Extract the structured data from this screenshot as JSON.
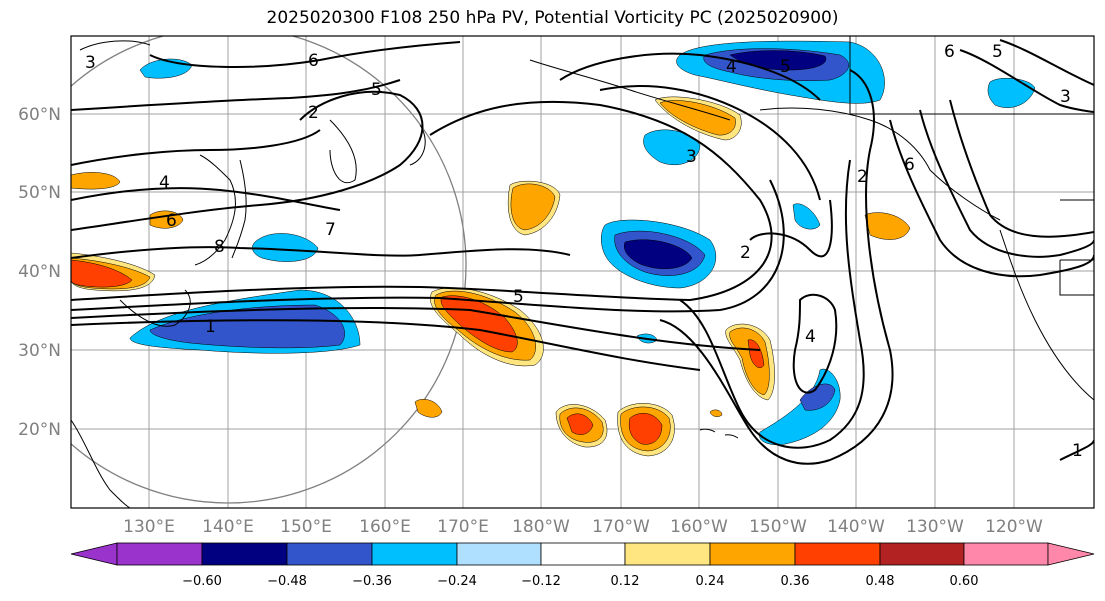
{
  "title": "2025020300 F108 250 hPa PV, Potential Vorticity PC (2025020900)",
  "map": {
    "lat_labels": [
      "60°N",
      "50°N",
      "40°N",
      "30°N",
      "20°N"
    ],
    "lon_labels": [
      "130°E",
      "140°E",
      "150°E",
      "160°E",
      "170°E",
      "180°W",
      "170°W",
      "160°W",
      "150°W",
      "140°W",
      "130°W",
      "120°W"
    ],
    "contour_labels": [
      "6",
      "5",
      "2",
      "4",
      "6",
      "7",
      "8",
      "1",
      "5",
      "4",
      "5",
      "3",
      "2",
      "2",
      "4",
      "1",
      "6",
      "5",
      "3",
      "3",
      "6"
    ],
    "colors": {
      "grid": "#a0a0a0",
      "coast": "#000000",
      "contour": "#000000",
      "label_gray": "#808080"
    }
  },
  "colorbar": {
    "tick_labels": [
      "−0.60",
      "−0.48",
      "−0.36",
      "−0.24",
      "−0.12",
      "0.12",
      "0.24",
      "0.36",
      "0.48",
      "0.60"
    ],
    "colors": [
      "#9933cc",
      "#000080",
      "#3355cc",
      "#00bfff",
      "#b0e0ff",
      "#ffffff",
      "#ffe680",
      "#ffa500",
      "#ff4000",
      "#b22222",
      "#ff88aa"
    ]
  }
}
